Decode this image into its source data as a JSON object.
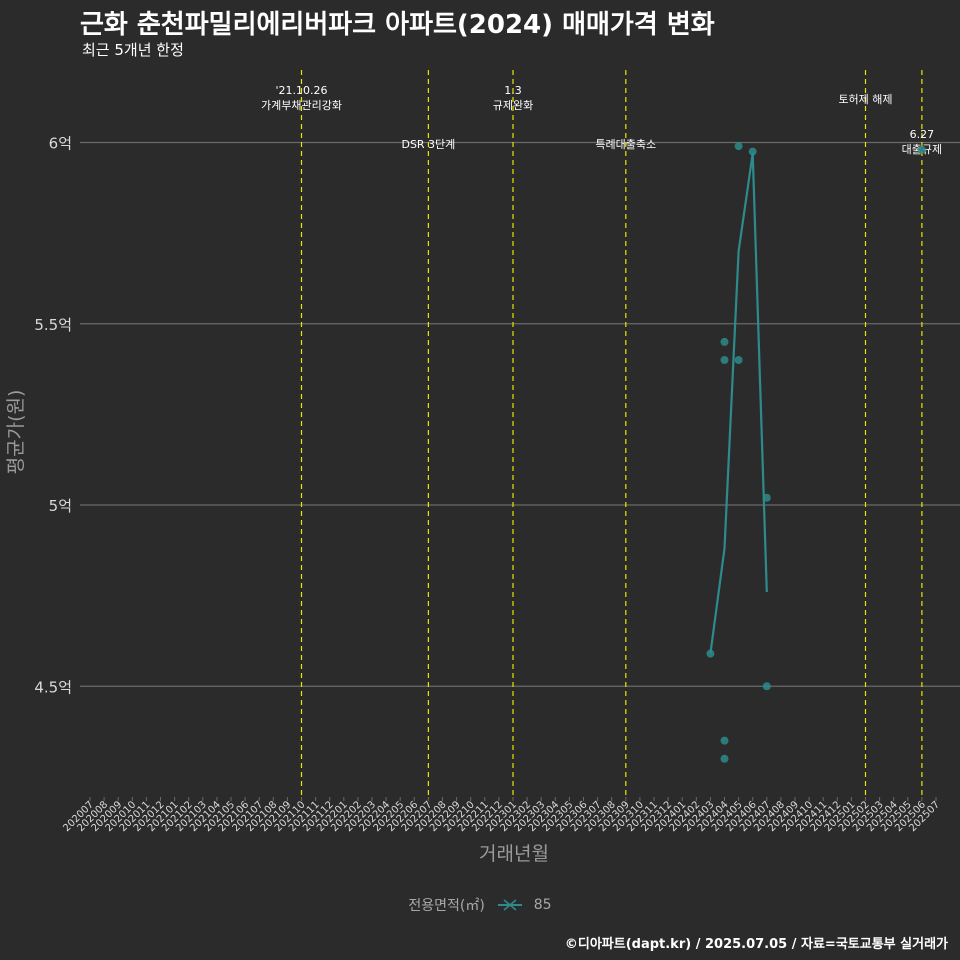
{
  "title": "근화 춘천파밀리에리버파크 아파트(2024) 매매가격 변화",
  "subtitle": "최근 5개년 한정",
  "caption": "©디아파트(dapt.kr) / 2025.07.05 / 자료=국토교통부 실거래가",
  "colors": {
    "background": "#2b2b2b",
    "series": "#2e8b8b",
    "event_line": "#e6e600",
    "grid": "#6a6a6a",
    "axis_text": "#d9d9d9",
    "axis_title": "#9a9a9a"
  },
  "legend": {
    "title": "전용면적(㎡)",
    "items": [
      "85"
    ]
  },
  "chart_data": {
    "type": "line",
    "title": "근화 춘천파밀리에리버파크 아파트(2024) 매매가격 변화",
    "subtitle": "최근 5개년 한정",
    "xlabel": "거래년월",
    "ylabel": "평균가(원)",
    "categories": [
      "202007",
      "202008",
      "202009",
      "202010",
      "202011",
      "202012",
      "202101",
      "202102",
      "202103",
      "202104",
      "202105",
      "202106",
      "202107",
      "202108",
      "202109",
      "202110",
      "202111",
      "202112",
      "202201",
      "202202",
      "202203",
      "202204",
      "202205",
      "202206",
      "202207",
      "202208",
      "202209",
      "202210",
      "202211",
      "202212",
      "202301",
      "202302",
      "202303",
      "202304",
      "202305",
      "202306",
      "202307",
      "202308",
      "202309",
      "202310",
      "202311",
      "202312",
      "202401",
      "202402",
      "202403",
      "202404",
      "202405",
      "202406",
      "202407",
      "202408",
      "202409",
      "202410",
      "202411",
      "202412",
      "202501",
      "202502",
      "202503",
      "202504",
      "202505",
      "202506",
      "202507"
    ],
    "ylim": [
      4.2,
      6.2
    ],
    "yticks": [
      4.5,
      5,
      5.5,
      6
    ],
    "ytick_labels": [
      "4.5억",
      "5억",
      "5.5억",
      "6억"
    ],
    "series": [
      {
        "name": "85",
        "line": [
          {
            "x": "202403",
            "y": 4.59
          },
          {
            "x": "202404",
            "y": 4.88
          },
          {
            "x": "202405",
            "y": 5.7
          },
          {
            "x": "202406",
            "y": 5.97
          },
          {
            "x": "202407",
            "y": 4.76
          }
        ],
        "points": [
          {
            "x": "202403",
            "y": 4.59
          },
          {
            "x": "202404",
            "y": 5.45
          },
          {
            "x": "202404",
            "y": 5.4
          },
          {
            "x": "202404",
            "y": 4.35
          },
          {
            "x": "202404",
            "y": 4.3
          },
          {
            "x": "202405",
            "y": 5.99
          },
          {
            "x": "202405",
            "y": 5.4
          },
          {
            "x": "202406",
            "y": 5.975
          },
          {
            "x": "202407",
            "y": 5.02
          },
          {
            "x": "202407",
            "y": 4.5
          },
          {
            "x": "202506",
            "y": 5.98
          }
        ]
      }
    ],
    "events": [
      {
        "x": "202110",
        "lines": [
          "'21.10.26",
          "가계부채관리강화"
        ],
        "level": "top"
      },
      {
        "x": "202207",
        "lines": [
          "DSR 3단계"
        ],
        "level": "mid"
      },
      {
        "x": "202301",
        "lines": [
          "1.3",
          "규제완화"
        ],
        "level": "top"
      },
      {
        "x": "202309",
        "lines": [
          "특례대출축소"
        ],
        "level": "mid"
      },
      {
        "x": "202502",
        "lines": [
          "토허제 해제"
        ],
        "level": "top2"
      },
      {
        "x": "202506",
        "lines": [
          "6.27",
          "대출규제"
        ],
        "level": "mid2"
      }
    ]
  }
}
